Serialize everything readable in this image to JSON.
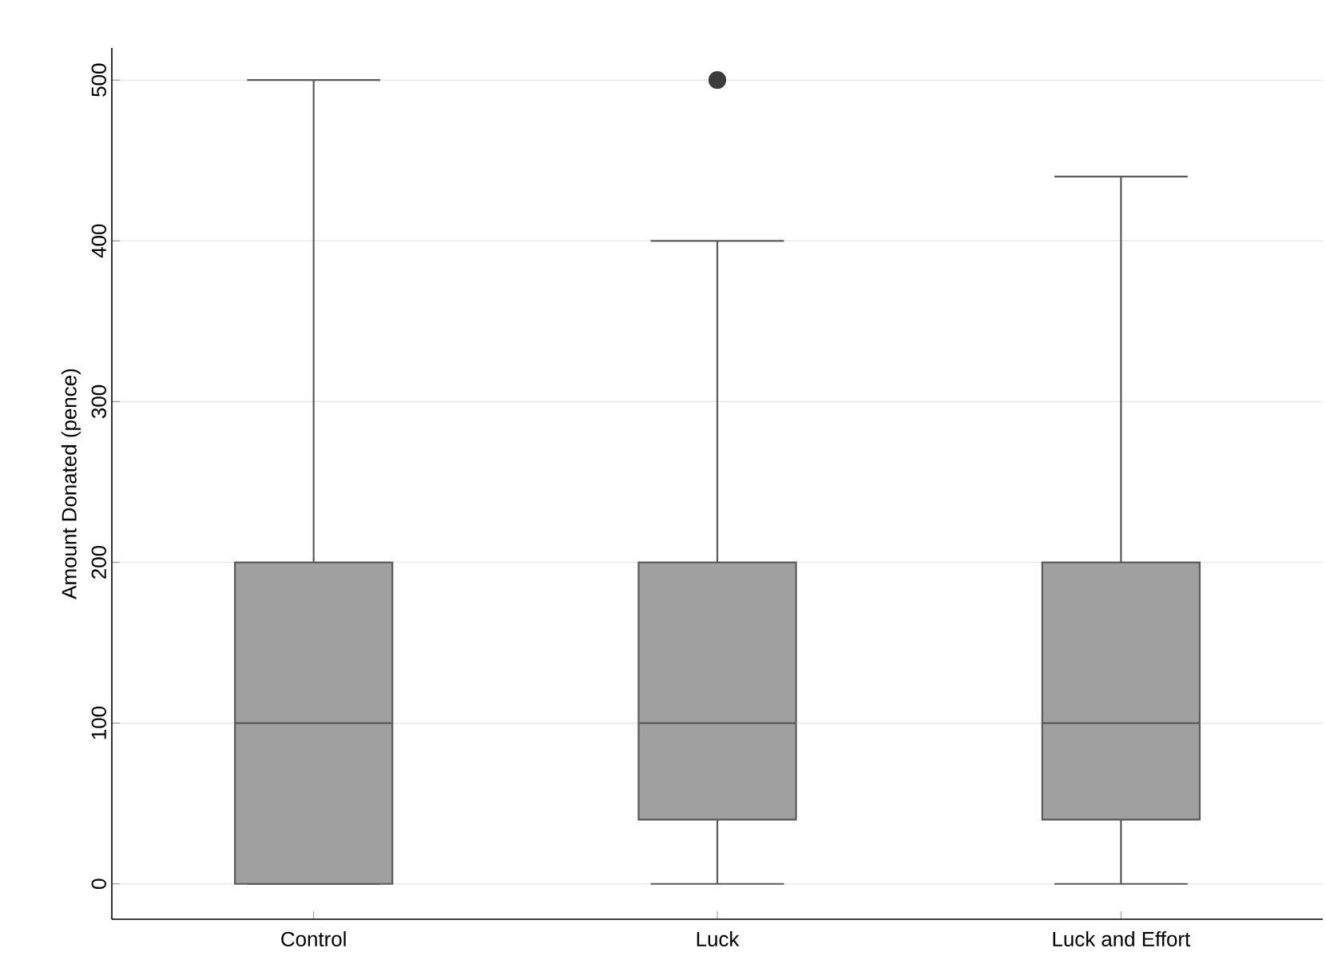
{
  "chart_data": {
    "type": "box",
    "ylabel": "Amount Donated (pence)",
    "categories": [
      "Control",
      "Luck",
      "Luck and Effort"
    ],
    "color": "#a0a0a0",
    "boxes": [
      {
        "low": 0,
        "q1": 0,
        "median": 100,
        "q3": 200,
        "high": 500
      },
      {
        "low": 0,
        "q1": 40,
        "median": 100,
        "q3": 200,
        "high": 400,
        "outliers": [
          500
        ]
      },
      {
        "low": 0,
        "q1": 40,
        "median": 100,
        "q3": 200,
        "high": 440
      }
    ],
    "ylim": [
      -22,
      520
    ],
    "yticks": [
      0,
      100,
      200,
      300,
      400,
      500
    ],
    "grid": "y"
  }
}
